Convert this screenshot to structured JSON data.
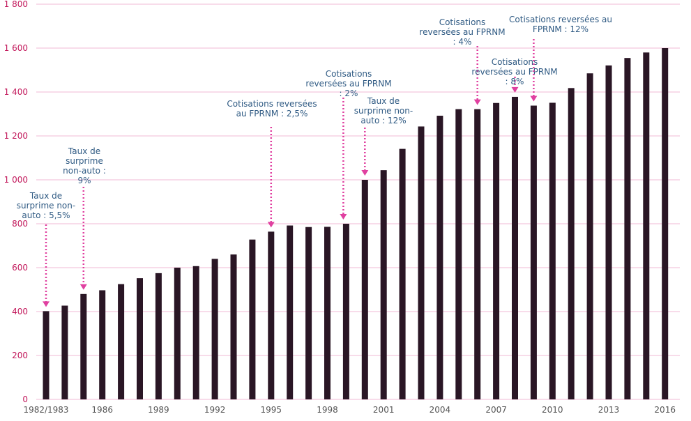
{
  "chart_data": {
    "type": "bar",
    "title": "",
    "xlabel": "",
    "ylabel": "",
    "ylim": [
      0,
      1800
    ],
    "yticks": [
      "0",
      "200",
      "400",
      "600",
      "800",
      "1 000",
      "1 200",
      "1 400",
      "1 600",
      "1 800"
    ],
    "grid": true,
    "colors": {
      "bar": "#2a1625",
      "grid": "#f2b8d4",
      "tick_y": "#c2185b",
      "arrow": "#e040a0",
      "annotation": "#2f5a83"
    },
    "categories": [
      "1982/1983",
      "1984",
      "1985",
      "1986",
      "1987",
      "1988",
      "1989",
      "1990",
      "1991",
      "1992",
      "1993",
      "1994",
      "1995",
      "1996",
      "1997",
      "1998",
      "1999",
      "2000",
      "2001",
      "2002",
      "2003",
      "2004",
      "2005",
      "2006",
      "2007",
      "2008",
      "2009",
      "2010",
      "2011",
      "2012",
      "2013",
      "2014",
      "2015",
      "2016"
    ],
    "shown_x_labels": [
      "1982/1983",
      "1986",
      "1989",
      "1992",
      "1995",
      "1998",
      "2001",
      "2004",
      "2007",
      "2010",
      "2013",
      "2016"
    ],
    "values": [
      402,
      427,
      480,
      497,
      525,
      552,
      575,
      600,
      607,
      640,
      660,
      728,
      764,
      792,
      785,
      786,
      800,
      1000,
      1044,
      1141,
      1243,
      1292,
      1322,
      1322,
      1350,
      1378,
      1338,
      1351,
      1418,
      1485,
      1521,
      1555,
      1580,
      1600
    ],
    "annotations": [
      {
        "category": "1982/1983",
        "lines": [
          "Taux de",
          "surprime non-",
          "auto : 5,5%"
        ]
      },
      {
        "category": "1985",
        "lines": [
          "Taux de",
          "surprime",
          "non-auto :",
          "9%"
        ]
      },
      {
        "category": "1995",
        "lines": [
          "Cotisations reversées",
          "au FPRNM : 2,5%"
        ]
      },
      {
        "category": "1999",
        "lines": [
          "Cotisations",
          "reversées au FPRNM",
          ": 2%"
        ]
      },
      {
        "category": "2000",
        "lines": [
          "Taux de",
          "surprime non-",
          "auto : 12%"
        ]
      },
      {
        "category": "2006",
        "lines": [
          "Cotisations",
          "reversées au FPRNM",
          ": 4%"
        ]
      },
      {
        "category": "2008",
        "lines": [
          "Cotisations",
          "reversées au FPRNM",
          ": 8%"
        ]
      },
      {
        "category": "2009",
        "lines": [
          "Cotisations reversées au",
          "FPRNM : 12%"
        ]
      }
    ]
  }
}
